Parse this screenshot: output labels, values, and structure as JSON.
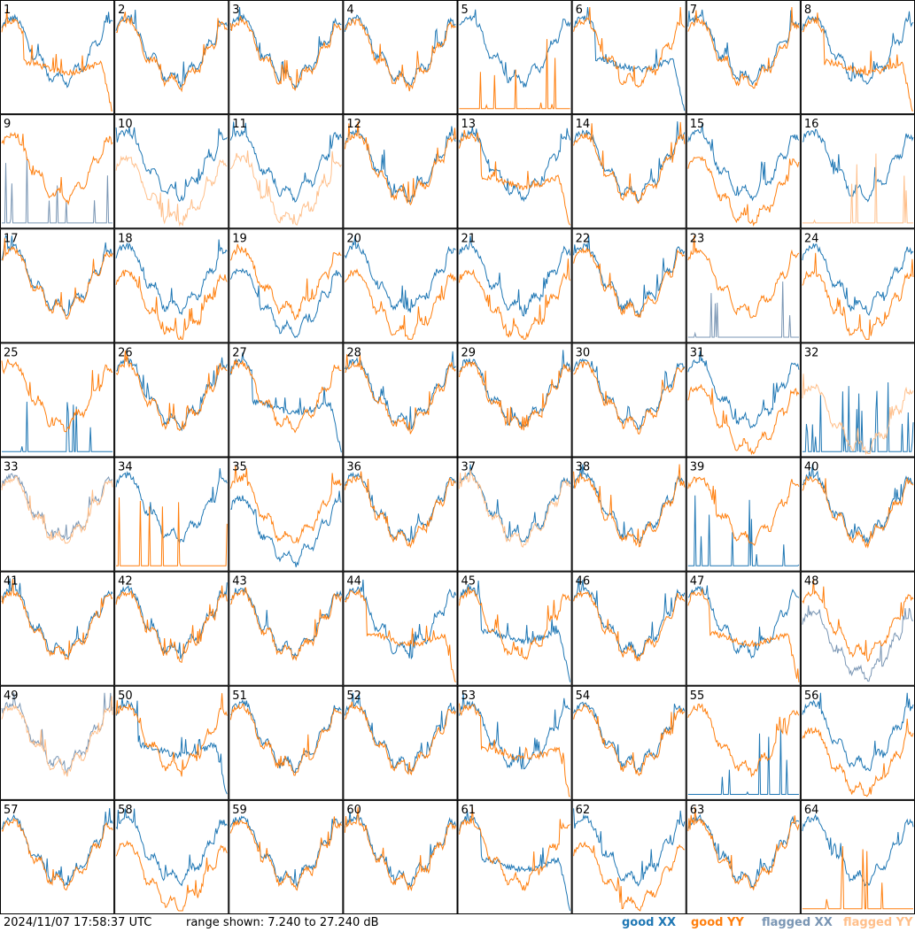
{
  "footer": {
    "timestamp": "2024/11/07 17:58:37 UTC",
    "range_text": "range shown: 7.240 to 27.240 dB"
  },
  "legend": {
    "good_xx": "good XX",
    "good_yy": "good YY",
    "flagged_xx": "flagged XX",
    "flagged_yy": "flagged YY"
  },
  "colors": {
    "good_xx": "#1f77b4",
    "good_yy": "#ff7f0e",
    "flagged_xx": "#7a96b4",
    "flagged_yy": "#ffbf8a",
    "panel_border": "#000000"
  },
  "chart_data": {
    "type": "line",
    "grid": "8x8 small-multiples",
    "ylim": [
      7.24,
      27.24
    ],
    "yunit": "dB",
    "series": [
      "XX",
      "YY"
    ],
    "panels": [
      {
        "id": "1",
        "xx": "normal",
        "yy": "dip"
      },
      {
        "id": "2",
        "xx": "normal",
        "yy": "normal"
      },
      {
        "id": "3",
        "xx": "normal",
        "yy": "normal"
      },
      {
        "id": "4",
        "xx": "normal",
        "yy": "normal"
      },
      {
        "id": "5",
        "xx": "normal",
        "yy": "dead"
      },
      {
        "id": "6",
        "xx": "dip",
        "yy": "normal"
      },
      {
        "id": "7",
        "xx": "normal",
        "yy": "normal"
      },
      {
        "id": "8",
        "xx": "normal",
        "yy": "dip"
      },
      {
        "id": "9",
        "xx": "dead",
        "yy": "normal",
        "flag_xx": true
      },
      {
        "id": "10",
        "xx": "normal",
        "yy": "low",
        "flag_yy": true
      },
      {
        "id": "11",
        "xx": "normal",
        "yy": "low",
        "flag_yy": true
      },
      {
        "id": "12",
        "xx": "normal",
        "yy": "normal"
      },
      {
        "id": "13",
        "xx": "normal",
        "yy": "dip"
      },
      {
        "id": "14",
        "xx": "normal",
        "yy": "normal"
      },
      {
        "id": "15",
        "xx": "normal",
        "yy": "low"
      },
      {
        "id": "16",
        "xx": "normal",
        "yy": "dead",
        "flag_yy": true
      },
      {
        "id": "17",
        "xx": "normal",
        "yy": "normal"
      },
      {
        "id": "18",
        "xx": "normal",
        "yy": "low"
      },
      {
        "id": "19",
        "xx": "low",
        "yy": "normal"
      },
      {
        "id": "20",
        "xx": "normal",
        "yy": "low"
      },
      {
        "id": "21",
        "xx": "normal",
        "yy": "low"
      },
      {
        "id": "22",
        "xx": "normal",
        "yy": "normal"
      },
      {
        "id": "23",
        "xx": "dead",
        "yy": "normal",
        "flag_xx": true
      },
      {
        "id": "24",
        "xx": "normal",
        "yy": "low"
      },
      {
        "id": "25",
        "xx": "dead",
        "yy": "normal"
      },
      {
        "id": "26",
        "xx": "normal",
        "yy": "normal"
      },
      {
        "id": "27",
        "xx": "dip",
        "yy": "normal"
      },
      {
        "id": "28",
        "xx": "normal",
        "yy": "normal"
      },
      {
        "id": "29",
        "xx": "normal",
        "yy": "normal"
      },
      {
        "id": "30",
        "xx": "normal",
        "yy": "normal"
      },
      {
        "id": "31",
        "xx": "normal",
        "yy": "low"
      },
      {
        "id": "32",
        "xx": "dead",
        "yy": "low",
        "flag_yy": true
      },
      {
        "id": "33",
        "xx": "normal",
        "yy": "normal",
        "flag_xx": true,
        "flag_yy": true
      },
      {
        "id": "34",
        "xx": "normal",
        "yy": "dead"
      },
      {
        "id": "35",
        "xx": "low",
        "yy": "normal"
      },
      {
        "id": "36",
        "xx": "normal",
        "yy": "normal"
      },
      {
        "id": "37",
        "xx": "normal",
        "yy": "normal",
        "flag_yy": true
      },
      {
        "id": "38",
        "xx": "normal",
        "yy": "normal"
      },
      {
        "id": "39",
        "xx": "dead",
        "yy": "normal"
      },
      {
        "id": "40",
        "xx": "normal",
        "yy": "normal"
      },
      {
        "id": "41",
        "xx": "normal",
        "yy": "normal"
      },
      {
        "id": "42",
        "xx": "normal",
        "yy": "normal"
      },
      {
        "id": "43",
        "xx": "normal",
        "yy": "normal"
      },
      {
        "id": "44",
        "xx": "normal",
        "yy": "dip"
      },
      {
        "id": "45",
        "xx": "dip",
        "yy": "normal"
      },
      {
        "id": "46",
        "xx": "normal",
        "yy": "normal"
      },
      {
        "id": "47",
        "xx": "normal",
        "yy": "dip"
      },
      {
        "id": "48",
        "xx": "low",
        "yy": "normal",
        "flag_xx": true
      },
      {
        "id": "49",
        "xx": "normal",
        "yy": "normal",
        "flag_xx": true,
        "flag_yy": true
      },
      {
        "id": "50",
        "xx": "dip",
        "yy": "normal"
      },
      {
        "id": "51",
        "xx": "normal",
        "yy": "normal"
      },
      {
        "id": "52",
        "xx": "normal",
        "yy": "normal"
      },
      {
        "id": "53",
        "xx": "normal",
        "yy": "dip"
      },
      {
        "id": "54",
        "xx": "normal",
        "yy": "normal"
      },
      {
        "id": "55",
        "xx": "dead",
        "yy": "normal"
      },
      {
        "id": "56",
        "xx": "normal",
        "yy": "low"
      },
      {
        "id": "57",
        "xx": "normal",
        "yy": "normal"
      },
      {
        "id": "58",
        "xx": "normal",
        "yy": "low"
      },
      {
        "id": "59",
        "xx": "normal",
        "yy": "normal"
      },
      {
        "id": "60",
        "xx": "normal",
        "yy": "normal"
      },
      {
        "id": "61",
        "xx": "dip",
        "yy": "normal"
      },
      {
        "id": "62",
        "xx": "normal",
        "yy": "low"
      },
      {
        "id": "63",
        "xx": "normal",
        "yy": "normal"
      },
      {
        "id": "64",
        "xx": "normal",
        "yy": "dead"
      }
    ]
  }
}
